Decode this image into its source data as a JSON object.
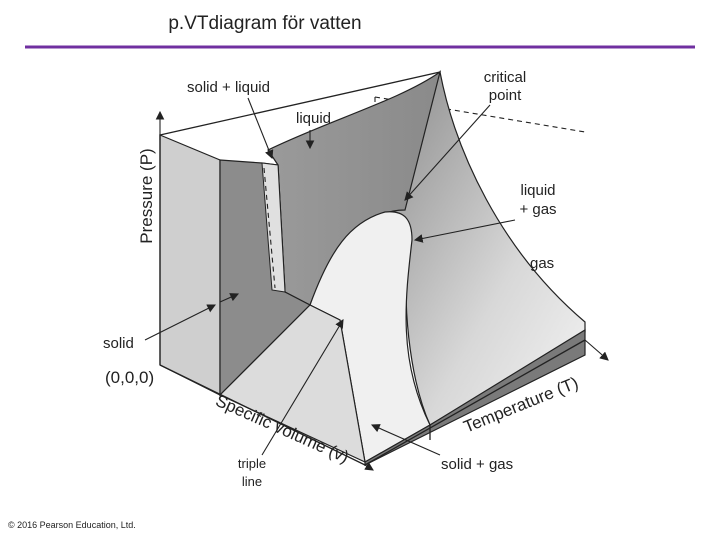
{
  "title": "p.VTdiagram för vatten",
  "labels": {
    "solid_liquid": "solid + liquid",
    "liquid": "liquid",
    "critical_point": [
      "critical",
      "point"
    ],
    "liquid_gas": [
      "liquid",
      "+ gas"
    ],
    "gas": "gas",
    "solid": "solid",
    "origin": "(0,0,0)",
    "triple_line": [
      "triple",
      "line"
    ],
    "solid_gas": "solid + gas"
  },
  "axes": {
    "pressure": "Pressure (P)",
    "specific_volume": "Specific volume (v)",
    "temperature": "Temperature (T)"
  },
  "copyright": "© 2016 Pearson Education, Ltd."
}
